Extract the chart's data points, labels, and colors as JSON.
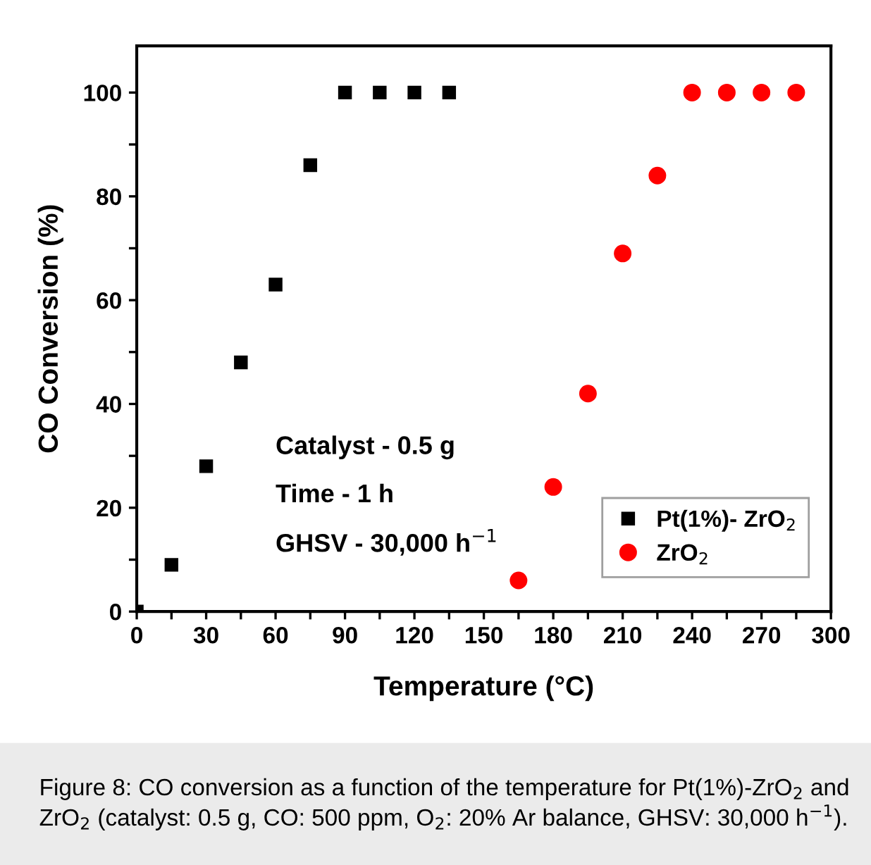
{
  "chart_data": {
    "type": "scatter",
    "xlabel": "Temperature (°C)",
    "ylabel": "CO Conversion (%)",
    "xlim": [
      0,
      300
    ],
    "ylim": [
      0,
      109
    ],
    "xticks": [
      0,
      {
        "value": 15,
        "label": null
      },
      30,
      {
        "value": 45,
        "label": null
      },
      60,
      {
        "value": 75,
        "label": null
      },
      90,
      {
        "value": 105,
        "label": null
      },
      120,
      {
        "value": 135,
        "label": null
      },
      150,
      {
        "value": 165,
        "label": null
      },
      180,
      {
        "value": 195,
        "label": null
      },
      210,
      {
        "value": 225,
        "label": null
      },
      240,
      {
        "value": 255,
        "label": null
      },
      270,
      {
        "value": 285,
        "label": null
      },
      300
    ],
    "yticks": [
      0,
      {
        "value": 10,
        "label": null
      },
      20,
      {
        "value": 30,
        "label": null
      },
      40,
      {
        "value": 50,
        "label": null
      },
      60,
      {
        "value": 70,
        "label": null
      },
      80,
      {
        "value": 90,
        "label": null
      },
      100
    ],
    "grid": false,
    "legend": "bottom right",
    "series": [
      {
        "name": "Pt(1%)- ZrO$_{2}$",
        "color": "#000000",
        "marker": "square",
        "x": [
          0,
          15,
          30,
          45,
          60,
          75,
          90,
          105,
          120,
          135
        ],
        "values": [
          0,
          9,
          28,
          48,
          63,
          86,
          100,
          100,
          100,
          100
        ]
      },
      {
        "name": "ZrO$_{2}$",
        "color": "#ff0000",
        "marker": "circle",
        "x": [
          165,
          180,
          195,
          210,
          225,
          240,
          255,
          270,
          285
        ],
        "values": [
          6,
          24,
          42,
          69,
          84,
          100,
          100,
          100,
          100
        ]
      }
    ],
    "annotations": [
      "Catalyst - 0.5 g",
      "Time - 1 h",
      "GHSV - 30,000 h$^{−1}$",
      "Figure 8: CO conversion as a function of the temperature for Pt(1%)-ZrO$_{2}$ and ZrO$_{2}$ (catalyst: 0.5 g, CO: 500 ppm, O$_{2}$: 20% Ar balance, GHSV: 30,000 h$^{−1}$)."
    ]
  }
}
